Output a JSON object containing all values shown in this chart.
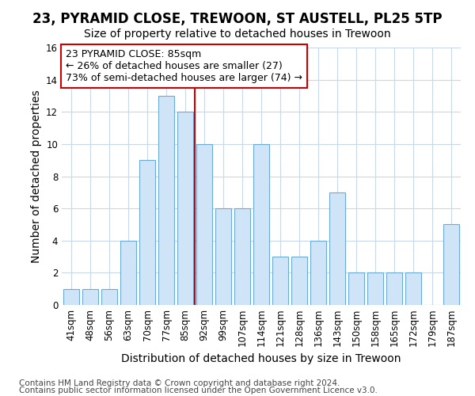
{
  "title1": "23, PYRAMID CLOSE, TREWOON, ST AUSTELL, PL25 5TP",
  "title2": "Size of property relative to detached houses in Trewoon",
  "xlabel": "Distribution of detached houses by size in Trewoon",
  "ylabel": "Number of detached properties",
  "categories": [
    "41sqm",
    "48sqm",
    "56sqm",
    "63sqm",
    "70sqm",
    "77sqm",
    "85sqm",
    "92sqm",
    "99sqm",
    "107sqm",
    "114sqm",
    "121sqm",
    "128sqm",
    "136sqm",
    "143sqm",
    "150sqm",
    "158sqm",
    "165sqm",
    "172sqm",
    "179sqm",
    "187sqm"
  ],
  "values": [
    1,
    1,
    1,
    4,
    9,
    13,
    12,
    10,
    6,
    6,
    10,
    3,
    3,
    4,
    7,
    2,
    2,
    2,
    2,
    0,
    5
  ],
  "bar_color": "#d0e4f7",
  "bar_edge_color": "#6aaad4",
  "vline_color": "#cc0000",
  "annotation_box_text": "23 PYRAMID CLOSE: 85sqm\n← 26% of detached houses are smaller (27)\n73% of semi-detached houses are larger (74) →",
  "box_edge_color": "#cc0000",
  "ylim": [
    0,
    16
  ],
  "yticks": [
    0,
    2,
    4,
    6,
    8,
    10,
    12,
    14,
    16
  ],
  "footer1": "Contains HM Land Registry data © Crown copyright and database right 2024.",
  "footer2": "Contains public sector information licensed under the Open Government Licence v3.0.",
  "background_color": "#ffffff",
  "plot_bg_color": "#ffffff",
  "grid_color": "#c8d8e8",
  "title1_fontsize": 12,
  "title2_fontsize": 10,
  "axis_label_fontsize": 10,
  "tick_fontsize": 8.5,
  "annotation_fontsize": 9,
  "footer_fontsize": 7.5
}
